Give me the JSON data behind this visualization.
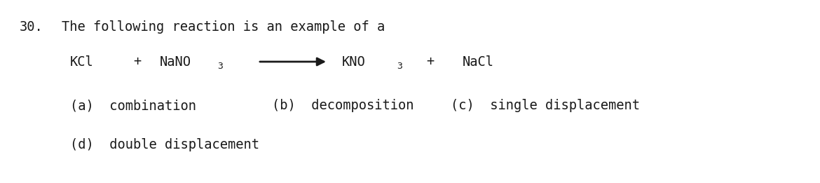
{
  "background_color": "#ffffff",
  "text_color": "#1a1a1a",
  "question_number": "30.",
  "question_text": "The following reaction is an example of a",
  "eq_kcl": "KCl",
  "eq_plus1": "+",
  "eq_nano3_main": "NaNO",
  "eq_nano3_sub": "3",
  "eq_kno3_main": "KNO",
  "eq_kno3_sub": "3",
  "eq_plus2": "+",
  "eq_nacl": "NaCl",
  "opt_a": "(a)  combination",
  "opt_b": "(b)  decomposition",
  "opt_c": "(c)  single displacement",
  "opt_d": "(d)  double displacement",
  "font_family": "DejaVu Sans Mono",
  "fontsize_main": 13.5,
  "fontsize_sub": 9.5,
  "fig_width": 11.7,
  "fig_height": 2.61,
  "dpi": 100
}
